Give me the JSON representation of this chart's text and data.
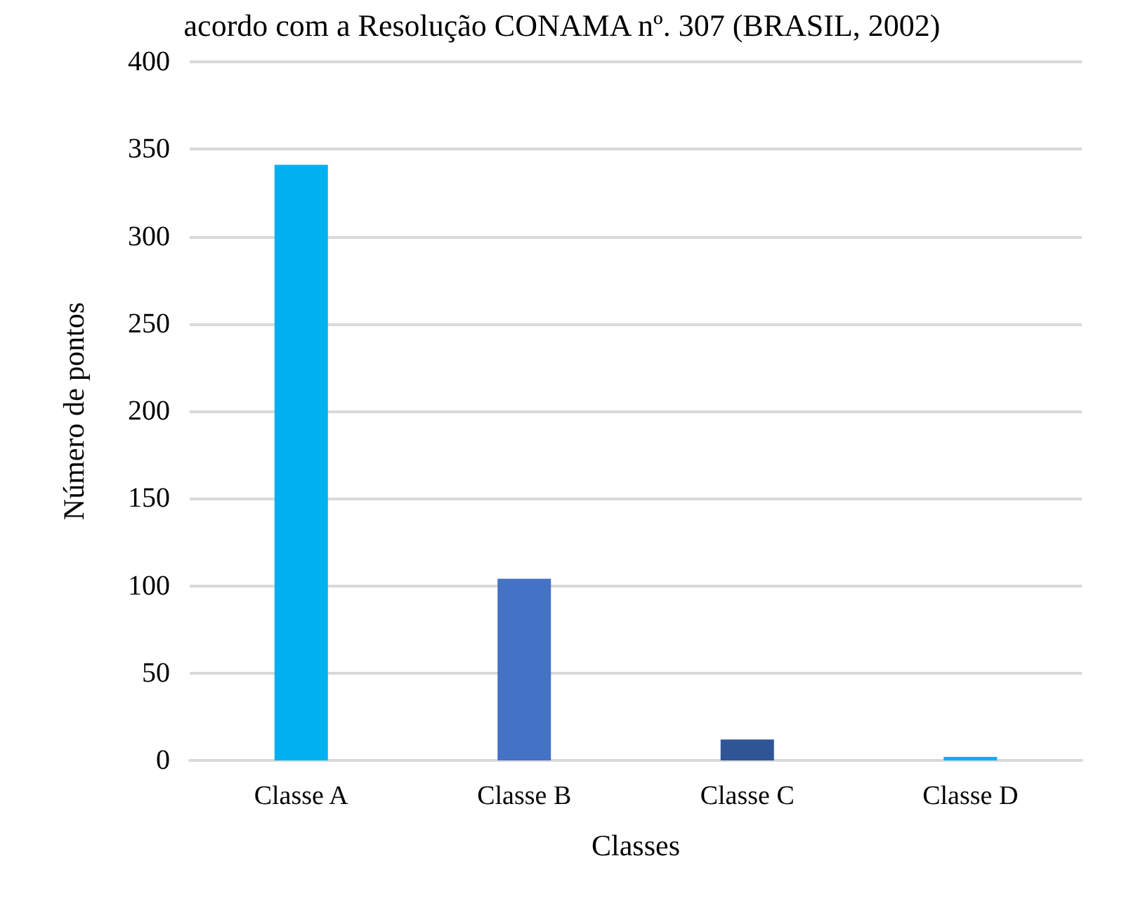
{
  "chart_data": {
    "type": "bar",
    "title": "acordo com a Resolução CONAMA nº. 307 (BRASIL, 2002)",
    "xlabel": "Classes",
    "ylabel": "Número de pontos",
    "categories": [
      "Classe A",
      "Classe B",
      "Classe C",
      "Classe D"
    ],
    "values": [
      341,
      104,
      12,
      2
    ],
    "colors": [
      "#00b0f0",
      "#4472c4",
      "#2f5597",
      "#00b0f0"
    ],
    "ylim": [
      0,
      400
    ],
    "yticks": [
      0,
      50,
      100,
      150,
      200,
      250,
      300,
      350,
      400
    ],
    "grid": "y"
  }
}
